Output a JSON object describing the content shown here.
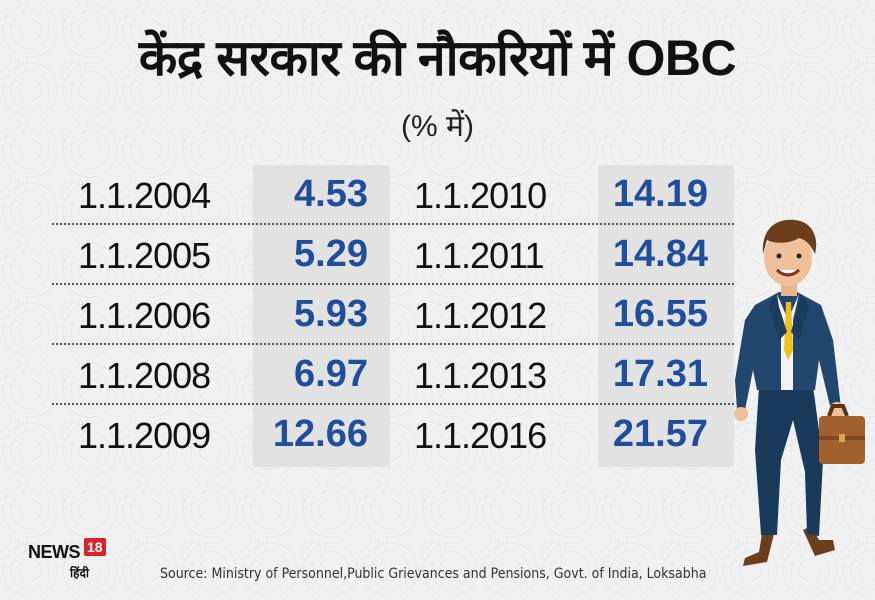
{
  "chart_data": {
    "type": "table",
    "title": "केंद्र सरकार की नौकरियों में OBC",
    "subtitle": "(% में)",
    "columns": [
      {
        "rows": [
          {
            "date": "1.1.2004",
            "value": "4.53"
          },
          {
            "date": "1.1.2005",
            "value": "5.29"
          },
          {
            "date": "1.1.2006",
            "value": "5.93"
          },
          {
            "date": "1.1.2008",
            "value": "6.97"
          },
          {
            "date": "1.1.2009",
            "value": "12.66"
          }
        ]
      },
      {
        "rows": [
          {
            "date": "1.1.2010",
            "value": "14.19"
          },
          {
            "date": "1.1.2011",
            "value": "14.84"
          },
          {
            "date": "1.1.2012",
            "value": "16.55"
          },
          {
            "date": "1.1.2013",
            "value": "17.31"
          },
          {
            "date": "1.1.2016",
            "value": "21.57"
          }
        ]
      }
    ],
    "value_color": "#1f4e9c",
    "source": "Source: Ministry of Personnel,Public Grievances and Pensions, Govt. of India, Loksabha"
  },
  "logo": {
    "news": "NEWS",
    "number": "18",
    "hindi": "हिंदी",
    "accent": "#d8232a"
  },
  "illustration": {
    "icon": "businessman-with-briefcase-icon"
  }
}
